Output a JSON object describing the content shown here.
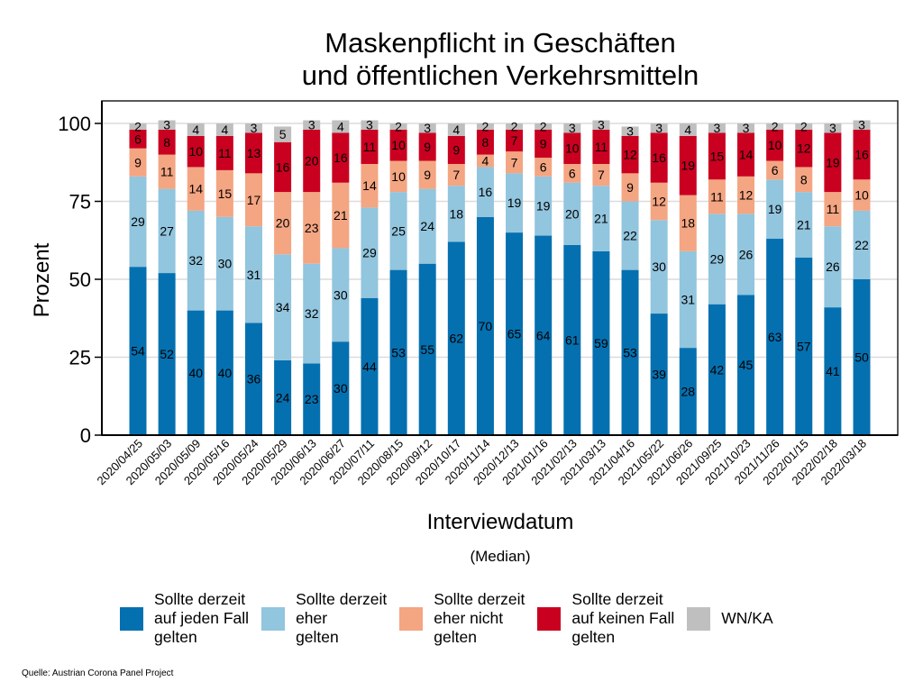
{
  "chart_data": {
    "type": "bar",
    "stacked": true,
    "title": "Maskenpflicht in Geschäften\nund öffentlichen Verkehrsmitteln",
    "title_lines": [
      "Maskenpflicht in Geschäften",
      "und öffentlichen Verkehrsmitteln"
    ],
    "xlabel": "Interviewdatum",
    "xlabel_sub": "(Median)",
    "ylabel": "Prozent",
    "ylim": [
      0,
      100
    ],
    "yticks": [
      0,
      25,
      50,
      75,
      100
    ],
    "grid": true,
    "legend_position": "bottom",
    "categories": [
      "2020/04/25",
      "2020/05/03",
      "2020/05/09",
      "2020/05/16",
      "2020/05/24",
      "2020/05/29",
      "2020/06/13",
      "2020/06/27",
      "2020/07/11",
      "2020/08/15",
      "2020/09/12",
      "2020/10/17",
      "2020/11/14",
      "2020/12/13",
      "2021/01/16",
      "2021/02/13",
      "2021/03/13",
      "2021/04/16",
      "2021/05/22",
      "2021/06/26",
      "2021/09/25",
      "2021/10/23",
      "2021/11/26",
      "2022/01/15",
      "2022/02/18",
      "2022/03/18"
    ],
    "series": [
      {
        "name": "Sollte derzeit auf jeden Fall gelten",
        "legend_label": "Sollte derzeit\nauf jeden Fall\ngelten",
        "color": "#0570b0",
        "values": [
          54,
          52,
          40,
          40,
          36,
          24,
          23,
          30,
          44,
          53,
          55,
          62,
          70,
          65,
          64,
          61,
          59,
          53,
          39,
          28,
          42,
          45,
          63,
          57,
          41,
          50
        ]
      },
      {
        "name": "Sollte derzeit eher gelten",
        "legend_label": "Sollte derzeit\neher\ngelten",
        "color": "#92c5de",
        "values": [
          29,
          27,
          32,
          30,
          31,
          34,
          32,
          30,
          29,
          25,
          24,
          18,
          16,
          19,
          19,
          20,
          21,
          22,
          30,
          31,
          29,
          26,
          19,
          21,
          26,
          22
        ]
      },
      {
        "name": "Sollte derzeit eher nicht gelten",
        "legend_label": "Sollte derzeit\neher nicht\ngelten",
        "color": "#f4a582",
        "values": [
          9,
          11,
          14,
          15,
          17,
          20,
          23,
          21,
          14,
          10,
          9,
          7,
          4,
          7,
          6,
          6,
          7,
          9,
          12,
          18,
          11,
          12,
          6,
          8,
          11,
          10
        ]
      },
      {
        "name": "Sollte derzeit auf keinen Fall gelten",
        "legend_label": "Sollte derzeit\nauf keinen Fall\ngelten",
        "color": "#ca0020",
        "values": [
          6,
          8,
          10,
          11,
          13,
          16,
          20,
          16,
          11,
          10,
          9,
          9,
          8,
          7,
          9,
          10,
          11,
          12,
          16,
          19,
          15,
          14,
          10,
          12,
          19,
          16
        ]
      },
      {
        "name": "WN/KA",
        "legend_label": "WN/KA",
        "color": "#bfbfbf",
        "values": [
          2,
          3,
          4,
          4,
          3,
          5,
          3,
          4,
          3,
          2,
          3,
          4,
          2,
          2,
          2,
          3,
          3,
          3,
          3,
          4,
          3,
          3,
          2,
          2,
          3,
          3
        ]
      }
    ]
  },
  "source": "Quelle: Austrian Corona Panel Project"
}
